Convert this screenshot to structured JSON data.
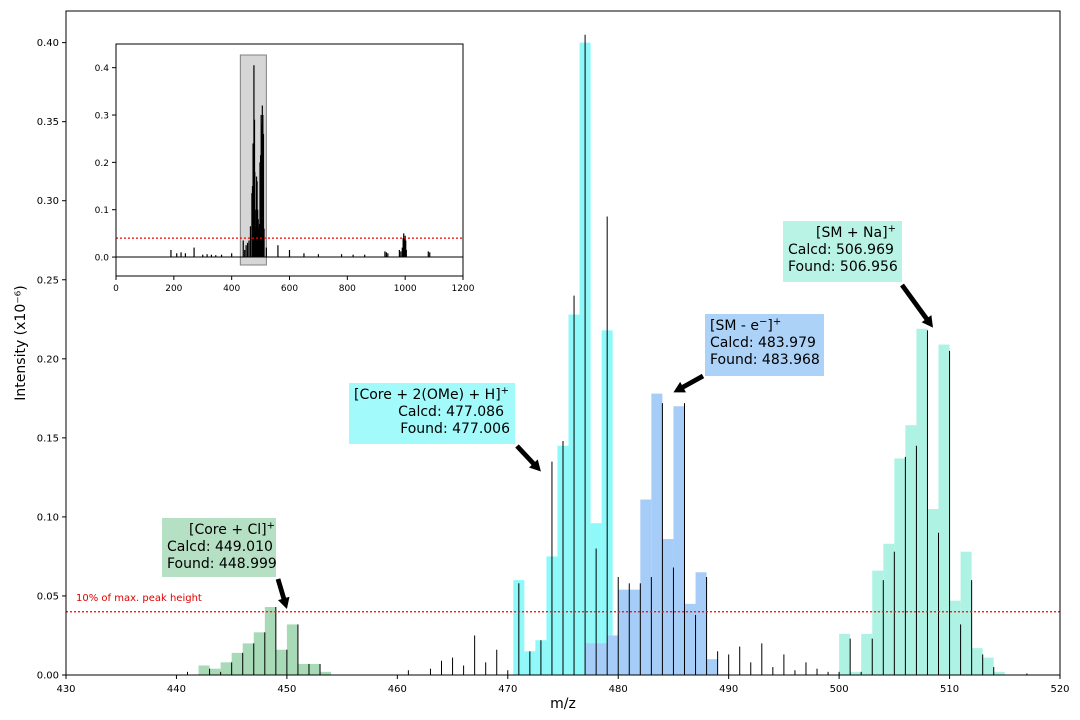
{
  "colors": {
    "grid_line": "#ff0000",
    "cl_fill": "#a8dab8",
    "cl_box": "#b6e0c4",
    "core_fill": "#8ff8f8",
    "core_box": "#a3fafa",
    "sm_fill": "#a6cdf8",
    "sm_box": "#acd2f8",
    "na_fill": "#aef2e4",
    "na_box": "#b8f3e6",
    "ref_text": "#e00000"
  },
  "ref_label": "10% of max. peak height",
  "chart_data": [
    {
      "type": "bar",
      "xlabel": "m/z",
      "ylabel": "Intensity (x10⁻⁶)",
      "xlim": [
        430,
        520
      ],
      "ylim": [
        0,
        0.42
      ],
      "xticks": [
        "430",
        "440",
        "450",
        "460",
        "470",
        "480",
        "490",
        "500",
        "510",
        "520"
      ],
      "yticks": [
        "0.00",
        "0.05",
        "0.10",
        "0.15",
        "0.20",
        "0.25",
        "0.30",
        "0.35",
        "0.40"
      ],
      "reference_line": {
        "y": 0.04
      },
      "series": [
        {
          "x": [
            442.5,
            443.5,
            444.5,
            445.5,
            446.5,
            447.5,
            448.5,
            449.5,
            450.5,
            451.5,
            452.5,
            453.5
          ],
          "values": [
            0.006,
            0.004,
            0.008,
            0.014,
            0.02,
            0.027,
            0.043,
            0.016,
            0.032,
            0.007,
            0.007,
            0.002
          ],
          "color": "#a8dab8"
        },
        {
          "x": [
            471.0,
            472.0,
            473.0,
            474.0,
            475.0,
            476.0,
            477.0,
            478.0,
            479.0,
            480.0,
            481.0
          ],
          "values": [
            0.06,
            0.015,
            0.022,
            0.075,
            0.145,
            0.228,
            0.4,
            0.096,
            0.218,
            0.02,
            0.008
          ],
          "color": "#8ff8f8"
        },
        {
          "x": [
            477.5,
            478.5,
            479.5,
            480.5,
            481.5,
            482.5,
            483.5,
            484.5,
            485.5,
            486.5,
            487.5,
            488.5
          ],
          "values": [
            0.02,
            0.02,
            0.025,
            0.054,
            0.054,
            0.111,
            0.178,
            0.086,
            0.17,
            0.045,
            0.065,
            0.01
          ],
          "color": "#a6cdf8"
        },
        {
          "x": [
            500.5,
            501.5,
            502.5,
            503.5,
            504.5,
            505.5,
            506.5,
            507.5,
            508.5,
            509.5,
            510.5,
            511.5,
            512.5,
            513.5,
            514.5
          ],
          "values": [
            0.026,
            0.002,
            0.026,
            0.066,
            0.083,
            0.137,
            0.158,
            0.219,
            0.105,
            0.209,
            0.047,
            0.078,
            0.017,
            0.011,
            0.002
          ],
          "color": "#aef2e4"
        }
      ],
      "peaks": {
        "x": [
          441.0,
          443.0,
          444.0,
          445.0,
          446.0,
          447.0,
          448.0,
          449.0,
          450.0,
          451.0,
          452.0,
          453.0,
          461.0,
          463.0,
          464.0,
          465.0,
          466.0,
          467.0,
          468.0,
          469.0,
          470.0,
          471.0,
          472.0,
          473.0,
          474.0,
          475.0,
          476.0,
          477.0,
          478.0,
          479.0,
          480.0,
          481.0,
          482.0,
          483.0,
          484.0,
          485.0,
          486.0,
          487.0,
          488.0,
          489.0,
          490.0,
          491.0,
          492.0,
          493.0,
          494.0,
          495.0,
          496.0,
          497.0,
          498.0,
          499.0,
          500.0,
          501.0,
          502.0,
          503.0,
          504.0,
          505.0,
          506.0,
          507.0,
          508.0,
          509.0,
          510.0,
          511.0,
          512.0,
          513.0,
          514.0,
          517.0,
          520.0
        ],
        "values": [
          0.002,
          0.004,
          0.002,
          0.008,
          0.014,
          0.02,
          0.027,
          0.043,
          0.016,
          0.032,
          0.007,
          0.007,
          0.003,
          0.004,
          0.009,
          0.011,
          0.006,
          0.025,
          0.008,
          0.016,
          0.003,
          0.058,
          0.015,
          0.022,
          0.135,
          0.148,
          0.24,
          0.405,
          0.08,
          0.29,
          0.062,
          0.058,
          0.058,
          0.062,
          0.172,
          0.068,
          0.172,
          0.038,
          0.062,
          0.015,
          0.013,
          0.018,
          0.008,
          0.02,
          0.005,
          0.013,
          0.003,
          0.008,
          0.004,
          0.002,
          0.002,
          0.023,
          0.002,
          0.023,
          0.06,
          0.078,
          0.138,
          0.145,
          0.218,
          0.09,
          0.205,
          0.032,
          0.06,
          0.013,
          0.005,
          0.001,
          0.001
        ]
      },
      "annotations": [
        {
          "text": "[Core + Cl]",
          "sup": "+",
          "calcd": "Calcd: 449.010",
          "found": "Found: 448.999",
          "box_color": "#b6e0c4",
          "point": [
            450,
            0.043
          ]
        },
        {
          "text": "[Core + 2(OMe) + H]",
          "sup": "+",
          "calcd": "Calcd: 477.086",
          "found": "Found: 477.006",
          "box_color": "#a3fafa",
          "point": [
            473,
            0.13
          ]
        },
        {
          "text": "[SM - e",
          "sup": "−",
          "close": "]",
          "sup2": "+",
          "calcd": "Calcd: 483.979",
          "found": "Found: 483.968",
          "box_color": "#acd2f8",
          "point": [
            485,
            0.18
          ]
        },
        {
          "text": "[SM + Na]",
          "sup": "+",
          "calcd": "Calcd: 506.969",
          "found": "Found: 506.956",
          "box_color": "#b8f3e6",
          "point": [
            508.5,
            0.221
          ]
        }
      ]
    },
    {
      "type": "bar",
      "title": "",
      "xlim": [
        0,
        1200
      ],
      "ylim": [
        -0.04,
        0.45
      ],
      "xticks": [
        "0",
        "200",
        "400",
        "600",
        "800",
        "1000",
        "1200"
      ],
      "yticks": [
        "0.0",
        "0.1",
        "0.2",
        "0.3",
        "0.4"
      ],
      "reference_line": {
        "y": 0.04
      },
      "highlight": [
        430,
        520
      ],
      "peaks": {
        "x": [
          190,
          210,
          225,
          240,
          270,
          300,
          315,
          330,
          345,
          365,
          400,
          440,
          445,
          450,
          455,
          460,
          465,
          470,
          472,
          474,
          476,
          477,
          478,
          479,
          480,
          482,
          484,
          486,
          488,
          490,
          492,
          494,
          496,
          498,
          500,
          502,
          504,
          506,
          507,
          508,
          509,
          510,
          512,
          520,
          560,
          600,
          650,
          700,
          780,
          820,
          860,
          930,
          935,
          940,
          980,
          985,
          990,
          993,
          995,
          997,
          999,
          1000,
          1002,
          1004,
          1080,
          1085
        ],
        "values": [
          0.015,
          0.008,
          0.01,
          0.008,
          0.02,
          0.005,
          0.006,
          0.005,
          0.004,
          0.005,
          0.008,
          0.035,
          0.015,
          0.025,
          0.03,
          0.035,
          0.065,
          0.135,
          0.15,
          0.24,
          0.2,
          0.405,
          0.25,
          0.29,
          0.18,
          0.062,
          0.1,
          0.17,
          0.16,
          0.1,
          0.08,
          0.06,
          0.07,
          0.2,
          0.215,
          0.3,
          0.28,
          0.32,
          0.25,
          0.3,
          0.2,
          0.26,
          0.06,
          0.02,
          0.025,
          0.015,
          0.008,
          0.006,
          0.006,
          0.005,
          0.005,
          0.012,
          0.01,
          0.008,
          0.015,
          0.012,
          0.02,
          0.04,
          0.05,
          0.04,
          0.03,
          0.045,
          0.035,
          0.015,
          0.012,
          0.01
        ]
      }
    }
  ]
}
